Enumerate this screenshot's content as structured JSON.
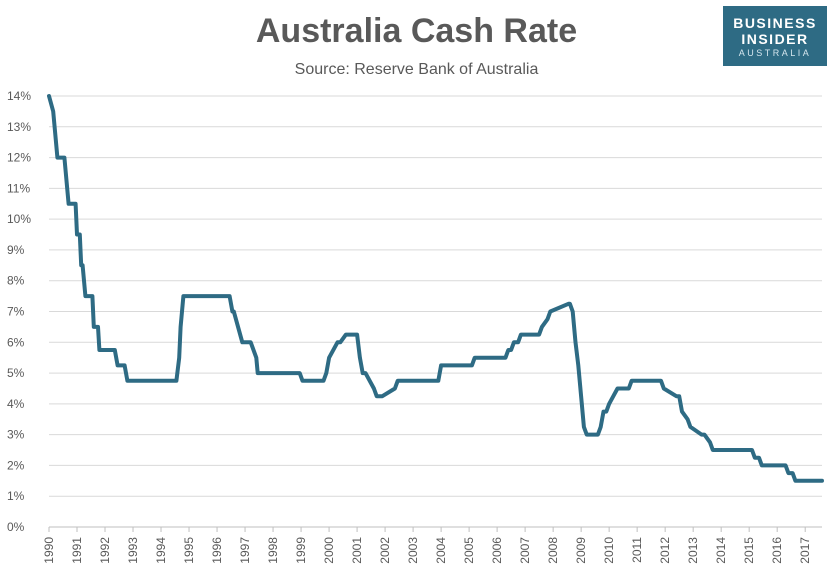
{
  "chart_data": {
    "type": "line",
    "title": "Australia Cash Rate",
    "subtitle": "Source: Reserve Bank of Australia",
    "xlabel": "",
    "ylabel": "",
    "ylim": [
      0,
      14
    ],
    "xlim": [
      1990,
      2017.6
    ],
    "y_ticks": [
      "0%",
      "1%",
      "2%",
      "3%",
      "4%",
      "5%",
      "6%",
      "7%",
      "8%",
      "9%",
      "10%",
      "11%",
      "12%",
      "13%",
      "14%"
    ],
    "x_ticks": [
      "1990",
      "1991",
      "1992",
      "1993",
      "1994",
      "1995",
      "1996",
      "1997",
      "1998",
      "1999",
      "2000",
      "2001",
      "2002",
      "2003",
      "2004",
      "2005",
      "2006",
      "2007",
      "2008",
      "2009",
      "2010",
      "2011",
      "2012",
      "2013",
      "2014",
      "2015",
      "2016",
      "2017"
    ],
    "grid": "horizontal",
    "line_color": "#2e6b84",
    "series": [
      {
        "x": [
          1990.0,
          1990.15,
          1990.2,
          1990.3,
          1990.55,
          1990.6,
          1990.65,
          1990.7,
          1990.8,
          1990.95,
          1991.0,
          1991.1,
          1991.15,
          1991.2,
          1991.3,
          1991.35,
          1991.4,
          1991.55,
          1991.6,
          1991.75,
          1991.8,
          1991.9,
          1991.95,
          1992.35,
          1992.45,
          1992.7,
          1992.8,
          1993.5,
          1993.6,
          1993.7,
          1993.85,
          1994.55,
          1994.65,
          1994.7,
          1994.8,
          1994.85,
          1994.95,
          1995.9,
          1996.0,
          1996.3,
          1996.45,
          1996.55,
          1996.6,
          1996.9,
          1997.0,
          1997.1,
          1997.2,
          1997.4,
          1997.45,
          1998.95,
          1999.05,
          1999.3,
          1999.4,
          1999.7,
          1999.8,
          1999.9,
          2000.0,
          2000.3,
          2000.4,
          2000.6,
          2000.7,
          2001.0,
          2001.1,
          2001.2,
          2001.3,
          2001.6,
          2001.7,
          2001.8,
          2001.9,
          2002.35,
          2002.45,
          2003.9,
          2004.0,
          2005.1,
          2005.2,
          2006.3,
          2006.4,
          2006.5,
          2006.6,
          2006.75,
          2006.85,
          2007.5,
          2007.6,
          2007.8,
          2007.9,
          2008.55,
          2008.6,
          2008.7,
          2008.8,
          2008.9,
          2009.0,
          2009.1,
          2009.2,
          2009.6,
          2009.7,
          2009.8,
          2009.9,
          2010.0,
          2010.15,
          2010.3,
          2010.6,
          2010.7,
          2010.8,
          2010.9,
          2011.85,
          2011.95,
          2012.4,
          2012.5,
          2012.6,
          2012.8,
          2012.9,
          2013.3,
          2013.4,
          2013.6,
          2013.7,
          2014.7,
          2015.1,
          2015.2,
          2015.35,
          2015.45,
          2016.3,
          2016.4,
          2016.55,
          2016.65,
          2017.6
        ],
        "y": [
          14.0,
          13.5,
          13.0,
          12.0,
          12.0,
          11.5,
          11.0,
          10.5,
          10.5,
          10.5,
          9.5,
          9.5,
          8.5,
          8.5,
          7.5,
          7.5,
          7.5,
          7.5,
          6.5,
          6.5,
          5.75,
          5.75,
          5.75,
          5.75,
          5.25,
          5.25,
          4.75,
          4.75,
          4.75,
          4.75,
          4.75,
          4.75,
          5.5,
          6.5,
          7.5,
          7.5,
          7.5,
          7.5,
          7.5,
          7.5,
          7.5,
          7.0,
          7.0,
          6.0,
          6.0,
          6.0,
          6.0,
          5.5,
          5.0,
          5.0,
          4.75,
          4.75,
          4.75,
          4.75,
          4.75,
          5.0,
          5.5,
          6.0,
          6.0,
          6.25,
          6.25,
          6.25,
          5.5,
          5.0,
          5.0,
          4.5,
          4.25,
          4.25,
          4.25,
          4.5,
          4.75,
          4.75,
          5.25,
          5.25,
          5.5,
          5.5,
          5.75,
          5.75,
          6.0,
          6.0,
          6.25,
          6.25,
          6.5,
          6.75,
          7.0,
          7.25,
          7.25,
          7.0,
          6.0,
          5.25,
          4.25,
          3.25,
          3.0,
          3.0,
          3.25,
          3.75,
          3.75,
          4.0,
          4.25,
          4.5,
          4.5,
          4.5,
          4.75,
          4.75,
          4.75,
          4.5,
          4.25,
          4.25,
          3.75,
          3.5,
          3.25,
          3.0,
          3.0,
          2.75,
          2.5,
          2.5,
          2.5,
          2.25,
          2.25,
          2.0,
          2.0,
          1.75,
          1.75,
          1.5,
          1.5
        ]
      }
    ]
  },
  "logo": {
    "line1": "BUSINESS",
    "line2": "INSIDER",
    "line3": "AUSTRALIA"
  }
}
